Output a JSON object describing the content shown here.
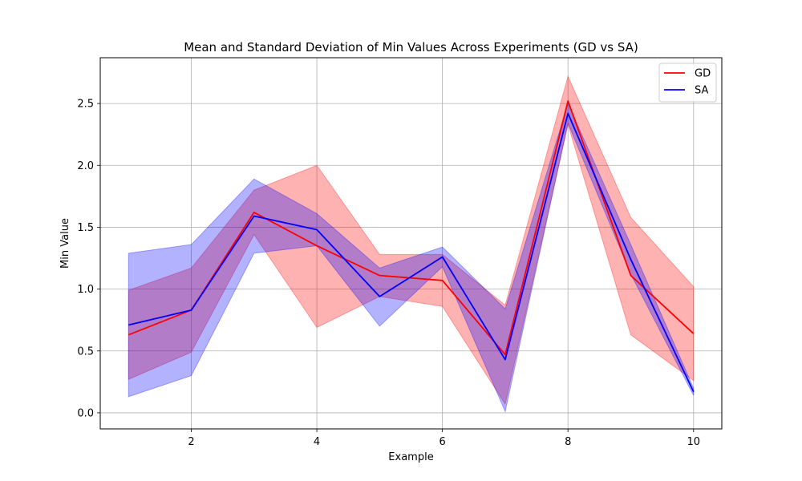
{
  "chart_data": {
    "type": "line",
    "title": "Mean and Standard Deviation of Min Values Across Experiments (GD vs SA)",
    "xlabel": "Example",
    "ylabel": "Min Value",
    "x": [
      1,
      2,
      3,
      4,
      5,
      6,
      7,
      8,
      9,
      10
    ],
    "xticks": [
      "2",
      "4",
      "6",
      "8",
      "10"
    ],
    "yticks": [
      "0.0",
      "0.5",
      "1.0",
      "1.5",
      "2.0",
      "2.5"
    ],
    "xlim": [
      0.55,
      10.45
    ],
    "ylim": [
      -0.13,
      2.87
    ],
    "grid": true,
    "legend_position": "top-right",
    "series": [
      {
        "name": "GD",
        "color": "#ff0000",
        "mean": [
          0.63,
          0.83,
          1.62,
          1.35,
          1.11,
          1.07,
          0.47,
          2.52,
          1.11,
          0.64
        ],
        "lower": [
          0.27,
          0.49,
          1.44,
          0.69,
          0.94,
          0.86,
          0.07,
          2.33,
          0.63,
          0.26
        ],
        "upper": [
          0.99,
          1.17,
          1.8,
          2.0,
          1.28,
          1.28,
          0.87,
          2.72,
          1.58,
          1.02
        ]
      },
      {
        "name": "SA",
        "color": "#0000ff",
        "mean": [
          0.71,
          0.83,
          1.59,
          1.48,
          0.94,
          1.26,
          0.43,
          2.42,
          1.24,
          0.17
        ],
        "lower": [
          0.13,
          0.3,
          1.29,
          1.35,
          0.7,
          1.18,
          0.01,
          2.34,
          1.12,
          0.14
        ],
        "upper": [
          1.29,
          1.36,
          1.89,
          1.61,
          1.17,
          1.34,
          0.84,
          2.5,
          1.36,
          0.2
        ]
      }
    ]
  }
}
